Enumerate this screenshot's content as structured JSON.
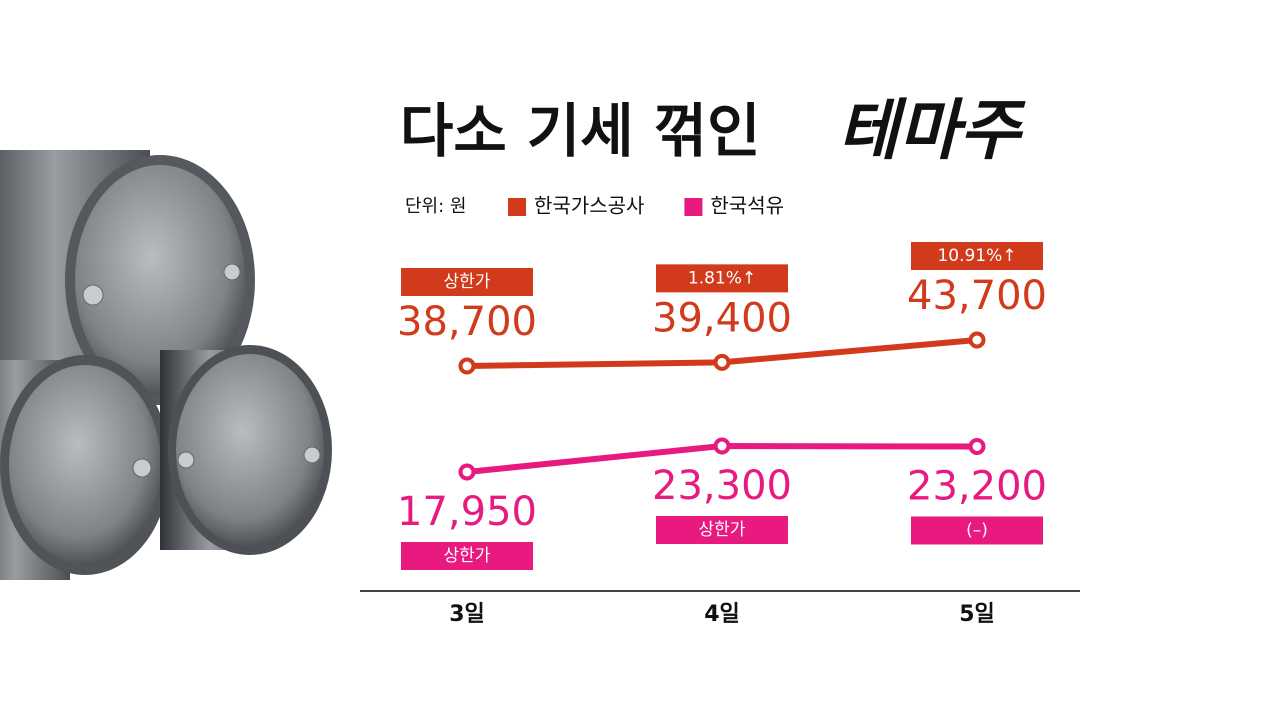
{
  "chart_data": {
    "type": "line",
    "title": "다소 기세 꺾인",
    "title_highlight": "테마주",
    "unit": "단위: 원",
    "categories": [
      "3일",
      "4일",
      "5일"
    ],
    "series": [
      {
        "name": "한국가스공사",
        "color": "#d23a1c",
        "values": [
          38700,
          39400,
          43700
        ],
        "value_labels": [
          "38,700",
          "39,400",
          "43,700"
        ],
        "annotations": [
          "상한가",
          "1.81%↑",
          "10.91%↑"
        ]
      },
      {
        "name": "한국석유",
        "color": "#e8197f",
        "values": [
          17950,
          23300,
          23200
        ],
        "value_labels": [
          "17,950",
          "23,300",
          "23,200"
        ],
        "annotations": [
          "상한가",
          "상한가",
          "(–)"
        ]
      }
    ]
  }
}
